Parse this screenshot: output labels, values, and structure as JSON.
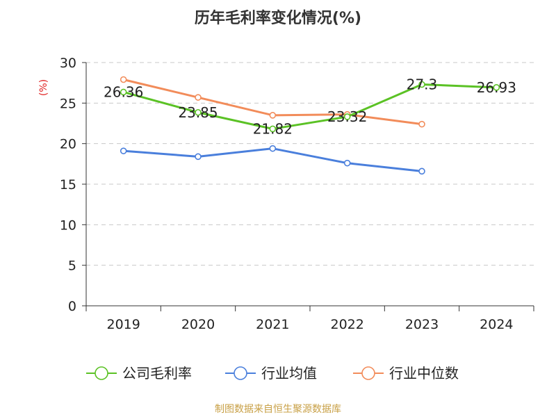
{
  "title": "历年毛利率变化情况(%)",
  "source": "制图数据来自恒生聚源数据库",
  "chart_data": {
    "type": "line",
    "title": "历年毛利率变化情况(%)",
    "ylabel": "(%)",
    "xlabel": "",
    "categories": [
      "2019",
      "2020",
      "2021",
      "2022",
      "2023",
      "2024"
    ],
    "ylim": [
      0,
      30
    ],
    "yticks": [
      0,
      5,
      10,
      15,
      20,
      25,
      30
    ],
    "grid": true,
    "legend_position": "bottom",
    "series": [
      {
        "name": "公司毛利率",
        "color": "#5bc225",
        "values": [
          26.36,
          23.85,
          21.82,
          23.32,
          27.3,
          26.93
        ],
        "labels": [
          "26.36",
          "23.85",
          "21.82",
          "23.32",
          "27.3",
          "26.93"
        ]
      },
      {
        "name": "行业均值",
        "color": "#4a7fdc",
        "values": [
          19.1,
          18.4,
          19.4,
          17.6,
          16.6,
          null
        ]
      },
      {
        "name": "行业中位数",
        "color": "#f28c5a",
        "values": [
          27.9,
          25.7,
          23.5,
          23.6,
          22.4,
          null
        ]
      }
    ]
  }
}
